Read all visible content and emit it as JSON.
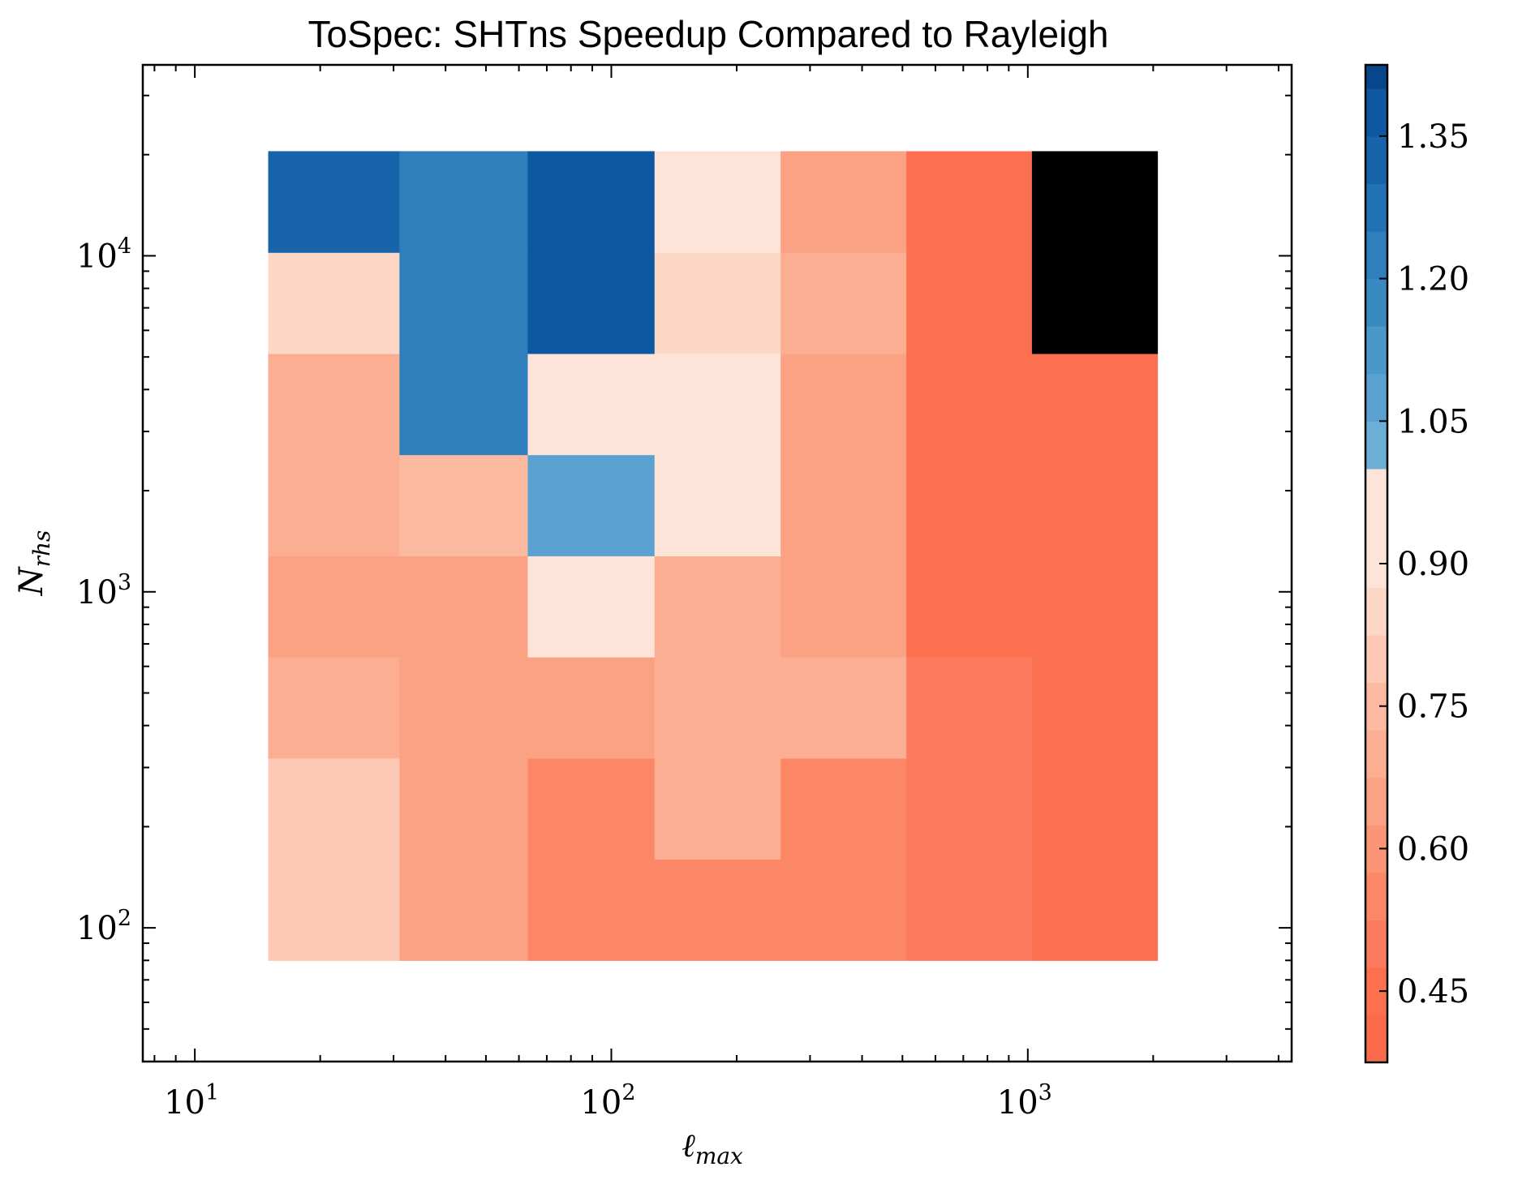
{
  "chart_data": {
    "type": "heatmap",
    "title": "ToSpec: SHTns Speedup Compared to Rayleigh",
    "xlabel": {
      "base": "ℓ",
      "sub": "max"
    },
    "ylabel": {
      "base": "N",
      "sub": "rhs"
    },
    "xscale": "log",
    "yscale": "log",
    "xlim": [
      7.5,
      4300
    ],
    "ylim": [
      40,
      37000
    ],
    "x_ticks": [
      {
        "value": 10,
        "base": "10",
        "exp": "1"
      },
      {
        "value": 100,
        "base": "10",
        "exp": "2"
      },
      {
        "value": 1000,
        "base": "10",
        "exp": "3"
      }
    ],
    "y_ticks": [
      {
        "value": 100,
        "base": "10",
        "exp": "2"
      },
      {
        "value": 1000,
        "base": "10",
        "exp": "3"
      },
      {
        "value": 10000,
        "base": "10",
        "exp": "4"
      }
    ],
    "x_edges": [
      15,
      31,
      63,
      127,
      255,
      511,
      1023,
      2047
    ],
    "y_edges": [
      80,
      160,
      320,
      640,
      1280,
      2560,
      5120,
      10240,
      20480
    ],
    "values": [
      [
        0.82,
        0.67,
        0.57,
        0.57,
        0.57,
        0.52,
        0.47
      ],
      [
        0.82,
        0.67,
        0.57,
        0.72,
        0.57,
        0.52,
        0.47
      ],
      [
        0.72,
        0.67,
        0.67,
        0.72,
        0.72,
        0.52,
        0.47
      ],
      [
        0.67,
        0.67,
        0.92,
        0.72,
        0.67,
        0.47,
        0.47
      ],
      [
        0.72,
        0.77,
        1.07,
        0.92,
        0.67,
        0.47,
        0.47
      ],
      [
        0.72,
        1.22,
        0.92,
        0.92,
        0.67,
        0.47,
        0.47
      ],
      [
        0.87,
        1.22,
        1.39,
        0.87,
        0.72,
        0.47,
        null
      ],
      [
        1.32,
        1.22,
        1.39,
        0.92,
        0.67,
        0.47,
        null
      ]
    ],
    "missing_color": "#000000",
    "colorbar": {
      "vmin": 0.375,
      "vmax": 1.425,
      "step": 0.05,
      "ticks": [
        "0.45",
        "0.60",
        "0.75",
        "0.90",
        "1.05",
        "1.20",
        "1.35"
      ],
      "neutral": 1.0,
      "palette_below_one": [
        "#fb6a4a",
        "#fc7050",
        "#fc7a5d",
        "#fc8767",
        "#fc9576",
        "#fca284",
        "#fcae92",
        "#fcbba1",
        "#fdc9b4",
        "#fdd7c6",
        "#fee4d8"
      ],
      "palette_above_one": [
        "#6baed6",
        "#5aa1cf",
        "#4a98c9",
        "#3a8ac2",
        "#2f7fbc",
        "#2171b5",
        "#1764ab",
        "#0d58a1",
        "#08468c"
      ]
    }
  }
}
